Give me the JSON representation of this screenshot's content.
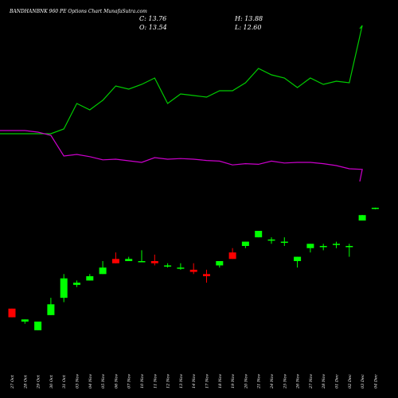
{
  "header": {
    "title": "BANDHANBNK 960 PE Options Chart MunafaSutra.com",
    "close_label": "C: 13.76",
    "open_label": "O: 13.54",
    "high_label": "H: 13.88",
    "low_label": "L: 12.60"
  },
  "colors": {
    "background": "#000000",
    "up": "#00ff00",
    "down": "#ff0000",
    "line_upper": "#00cc00",
    "line_lower": "#cc00cc",
    "text": "#ffffff"
  },
  "chart_data": {
    "type": "candlestick",
    "dates": [
      "27 Oct",
      "28 Oct",
      "29 Oct",
      "30 Oct",
      "31 Oct",
      "03 Nov",
      "04 Nov",
      "05 Nov",
      "06 Nov",
      "07 Nov",
      "10 Nov",
      "11 Nov",
      "12 Nov",
      "13 Nov",
      "14 Nov",
      "17 Nov",
      "18 Nov",
      "19 Nov",
      "20 Nov",
      "21 Nov",
      "24 Nov",
      "25 Nov",
      "26 Nov",
      "27 Nov",
      "28 Nov",
      "01 Dec",
      "02 Dec",
      "03 Dec",
      "04 Dec"
    ],
    "candles": [
      {
        "o": 1.95,
        "h": 1.95,
        "l": 1.75,
        "c": 1.75
      },
      {
        "o": 1.65,
        "h": 1.7,
        "l": 1.6,
        "c": 1.7
      },
      {
        "o": 1.45,
        "h": 1.65,
        "l": 1.45,
        "c": 1.65
      },
      {
        "o": 1.8,
        "h": 2.2,
        "l": 1.8,
        "c": 2.05
      },
      {
        "o": 2.2,
        "h": 2.75,
        "l": 2.1,
        "c": 2.65
      },
      {
        "o": 2.5,
        "h": 2.6,
        "l": 2.45,
        "c": 2.55
      },
      {
        "o": 2.6,
        "h": 2.75,
        "l": 2.6,
        "c": 2.7
      },
      {
        "o": 2.75,
        "h": 3.05,
        "l": 2.75,
        "c": 2.9
      },
      {
        "o": 3.1,
        "h": 3.25,
        "l": 3.0,
        "c": 3.0
      },
      {
        "o": 3.05,
        "h": 3.15,
        "l": 3.05,
        "c": 3.1
      },
      {
        "o": 3.05,
        "h": 3.3,
        "l": 3.05,
        "c": 3.05
      },
      {
        "o": 3.05,
        "h": 3.2,
        "l": 2.95,
        "c": 3.0
      },
      {
        "o": 2.95,
        "h": 3.0,
        "l": 2.9,
        "c": 2.95
      },
      {
        "o": 2.9,
        "h": 3.0,
        "l": 2.85,
        "c": 2.9
      },
      {
        "o": 2.85,
        "h": 3.0,
        "l": 2.75,
        "c": 2.8
      },
      {
        "o": 2.75,
        "h": 2.85,
        "l": 2.55,
        "c": 2.7
      },
      {
        "o": 2.95,
        "h": 3.05,
        "l": 2.9,
        "c": 3.05
      },
      {
        "o": 3.25,
        "h": 3.35,
        "l": 3.1,
        "c": 3.1
      },
      {
        "o": 3.4,
        "h": 3.5,
        "l": 3.35,
        "c": 3.5
      },
      {
        "o": 3.6,
        "h": 3.75,
        "l": 3.6,
        "c": 3.75
      },
      {
        "o": 3.55,
        "h": 3.6,
        "l": 3.45,
        "c": 3.55
      },
      {
        "o": 3.5,
        "h": 3.6,
        "l": 3.4,
        "c": 3.5
      },
      {
        "o": 3.05,
        "h": 3.15,
        "l": 2.9,
        "c": 3.15
      },
      {
        "o": 3.35,
        "h": 3.45,
        "l": 3.25,
        "c": 3.45
      },
      {
        "o": 3.4,
        "h": 3.45,
        "l": 3.3,
        "c": 3.4
      },
      {
        "o": 3.45,
        "h": 3.5,
        "l": 3.35,
        "c": 3.45
      },
      {
        "o": 3.4,
        "h": 3.45,
        "l": 3.15,
        "c": 3.4
      },
      {
        "o": 6.7,
        "h": 9.2,
        "l": 6.7,
        "c": 9.1
      },
      {
        "o": 13.54,
        "h": 13.88,
        "l": 12.6,
        "c": 13.76
      }
    ],
    "line_upper": [
      1.6,
      1.6,
      1.6,
      1.6,
      1.75,
      2.55,
      2.35,
      2.65,
      3.1,
      3.0,
      3.15,
      3.35,
      2.55,
      2.85,
      2.8,
      2.75,
      2.95,
      2.95,
      3.2,
      3.65,
      3.45,
      3.35,
      3.05,
      3.35,
      3.15,
      3.25,
      3.2,
      5.0,
      4.9
    ],
    "line_lower": [
      1.7,
      1.7,
      1.65,
      1.55,
      0.9,
      0.95,
      0.88,
      0.78,
      0.8,
      0.75,
      0.7,
      0.85,
      0.8,
      0.82,
      0.8,
      0.76,
      0.74,
      0.62,
      0.66,
      0.64,
      0.74,
      0.68,
      0.7,
      0.7,
      0.66,
      0.6,
      0.5,
      0.48,
      0.1
    ],
    "grid": false,
    "legend": "none"
  }
}
